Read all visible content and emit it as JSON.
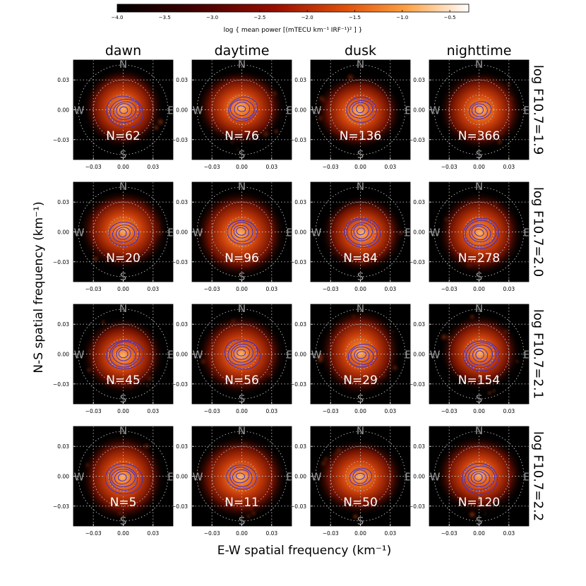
{
  "colorbar": {
    "label": "log { mean power [(mTECU km⁻¹ IRF⁻¹)² ] }",
    "range": [
      -4.0,
      -0.3
    ],
    "ticks": [
      "−4.0",
      "−3.5",
      "−3.0",
      "−2.5",
      "−2.0",
      "−1.5",
      "−1.0",
      "−0.5"
    ],
    "tick_values": [
      -4.0,
      -3.5,
      -3.0,
      -2.5,
      -2.0,
      -1.5,
      -1.0,
      -0.5
    ]
  },
  "chart_data": {
    "type": "heatmap",
    "xlabel": "E-W spatial frequency (km⁻¹)",
    "ylabel": "N-S spatial frequency (km⁻¹)",
    "columns": [
      "dawn",
      "daytime",
      "dusk",
      "nighttime"
    ],
    "rows": [
      "log F10.7=1.9",
      "log F10.7=2.0",
      "log F10.7=2.1",
      "log F10.7=2.2"
    ],
    "axis_range": [
      -0.05,
      0.05
    ],
    "tick_labels": [
      "−0.03",
      "0.00",
      "0.03"
    ],
    "tick_values": [
      -0.03,
      0.0,
      0.03
    ],
    "compass": {
      "n": "N",
      "s": "S",
      "e": "E",
      "w": "W"
    },
    "counts": [
      [
        "N=62",
        "N=76",
        "N=136",
        "N=366"
      ],
      [
        "N=20",
        "N=96",
        "N=84",
        "N=278"
      ],
      [
        "N=45",
        "N=56",
        "N=29",
        "N=154"
      ],
      [
        "N=5",
        "N=11",
        "N=50",
        "N=120"
      ]
    ]
  }
}
